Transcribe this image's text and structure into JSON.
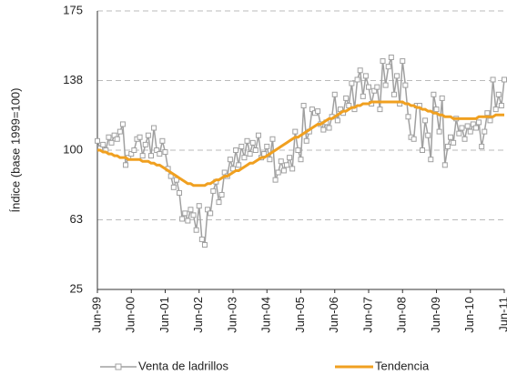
{
  "chart_data": {
    "type": "line",
    "y_label": "Índice (base 1999=100)",
    "categories": [
      "Jun-99",
      null,
      null,
      null,
      null,
      null,
      null,
      null,
      null,
      null,
      null,
      null,
      "Jun-00",
      null,
      null,
      null,
      null,
      null,
      null,
      null,
      null,
      null,
      null,
      null,
      "Jun-01",
      null,
      null,
      null,
      null,
      null,
      null,
      null,
      null,
      null,
      null,
      null,
      "Jun-02",
      null,
      null,
      null,
      null,
      null,
      null,
      null,
      null,
      null,
      null,
      null,
      "Jun-03",
      null,
      null,
      null,
      null,
      null,
      null,
      null,
      null,
      null,
      null,
      null,
      "Jun-04",
      null,
      null,
      null,
      null,
      null,
      null,
      null,
      null,
      null,
      null,
      null,
      "Jun-05",
      null,
      null,
      null,
      null,
      null,
      null,
      null,
      null,
      null,
      null,
      null,
      "Jun-06",
      null,
      null,
      null,
      null,
      null,
      null,
      null,
      null,
      null,
      null,
      null,
      "Jun-07",
      null,
      null,
      null,
      null,
      null,
      null,
      null,
      null,
      null,
      null,
      null,
      "Jun-08",
      null,
      null,
      null,
      null,
      null,
      null,
      null,
      null,
      null,
      null,
      null,
      "Jun-09",
      null,
      null,
      null,
      null,
      null,
      null,
      null,
      null,
      null,
      null,
      null,
      "Jun-10",
      null,
      null,
      null,
      null,
      null,
      null,
      null,
      null,
      null,
      null,
      null,
      "Jun-11"
    ],
    "series": [
      {
        "name": "Venta de ladrillos",
        "color": "#a0a0a0",
        "marker": "square",
        "values": [
          105,
          101,
          103,
          100,
          107,
          104,
          108,
          106,
          110,
          114,
          92,
          96,
          98,
          100,
          106,
          107,
          97,
          103,
          108,
          97,
          112,
          100,
          98,
          105,
          99,
          90,
          86,
          80,
          84,
          77,
          63,
          66,
          62,
          68,
          65,
          57,
          70,
          52,
          49,
          68,
          66,
          78,
          83,
          72,
          76,
          88,
          86,
          95,
          90,
          100,
          92,
          102,
          96,
          105,
          98,
          104,
          100,
          108,
          96,
          98,
          102,
          95,
          106,
          84,
          88,
          94,
          89,
          92,
          96,
          90,
          110,
          100,
          95,
          124,
          105,
          110,
          122,
          120,
          121,
          114,
          111,
          115,
          112,
          118,
          130,
          116,
          122,
          120,
          128,
          124,
          136,
          122,
          138,
          143,
          129,
          140,
          134,
          125,
          132,
          134,
          122,
          148,
          135,
          145,
          150,
          130,
          140,
          125,
          148,
          135,
          118,
          107,
          106,
          124,
          124,
          100,
          116,
          108,
          95,
          130,
          122,
          110,
          128,
          92,
          102,
          107,
          104,
          117,
          109,
          112,
          106,
          113,
          110,
          114,
          112,
          115,
          102,
          110,
          120,
          116,
          138,
          122,
          130,
          124,
          138
        ]
      },
      {
        "name": "Tendencia",
        "color": "#f0a020",
        "values": [
          100,
          100,
          99,
          99,
          98,
          98,
          97,
          97,
          96,
          96,
          96,
          95,
          95,
          95,
          95,
          95,
          94,
          94,
          94,
          93,
          93,
          92,
          92,
          91,
          90,
          89,
          88,
          87,
          86,
          85,
          84,
          83,
          82,
          82,
          81,
          81,
          81,
          81,
          81,
          82,
          82,
          83,
          84,
          84,
          85,
          86,
          86,
          87,
          88,
          89,
          89,
          90,
          91,
          92,
          93,
          93,
          94,
          95,
          96,
          96,
          97,
          98,
          99,
          100,
          101,
          102,
          103,
          104,
          105,
          106,
          107,
          107,
          108,
          109,
          110,
          111,
          112,
          113,
          114,
          114,
          115,
          116,
          117,
          117,
          118,
          119,
          120,
          121,
          121,
          122,
          123,
          123,
          124,
          124,
          125,
          125,
          125,
          126,
          126,
          126,
          126,
          126,
          126,
          126,
          126,
          126,
          126,
          126,
          126,
          125,
          125,
          124,
          124,
          123,
          123,
          122,
          122,
          121,
          121,
          120,
          120,
          119,
          119,
          118,
          118,
          118,
          117,
          117,
          117,
          117,
          117,
          117,
          117,
          117,
          117,
          118,
          118,
          118,
          118,
          118,
          118,
          119,
          119,
          119,
          119
        ]
      }
    ],
    "ylim": [
      25,
      175
    ],
    "yticks": [
      25,
      {
        "value": 62.5,
        "label": "63"
      },
      100,
      {
        "value": 137.5,
        "label": "138"
      },
      175
    ],
    "grid": true
  }
}
